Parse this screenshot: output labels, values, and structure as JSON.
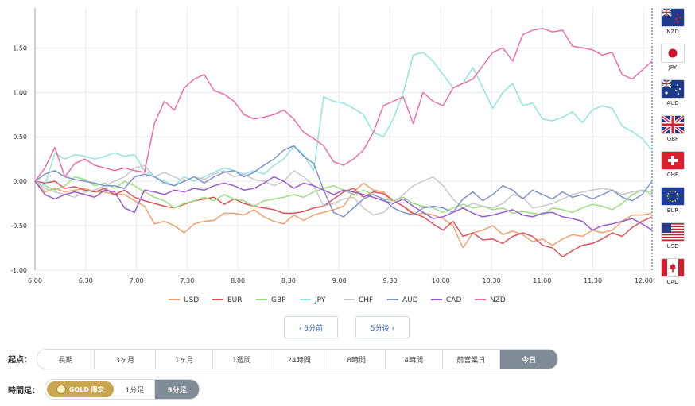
{
  "chart_data": {
    "type": "line",
    "x_ticks": [
      "6:00",
      "6:30",
      "7:00",
      "7:30",
      "8:00",
      "8:30",
      "9:00",
      "9:30",
      "10:00",
      "10:30",
      "11:00",
      "11:30",
      "12:00"
    ],
    "xlim": [
      "6:00",
      "12:05"
    ],
    "y_ticks": [
      "1.50",
      "1.00",
      "0.50",
      "0.00",
      "-0.50",
      "-1.00"
    ],
    "ylim": [
      -1.0,
      1.95
    ],
    "grid": true,
    "legend_position": "bottom",
    "series": [
      {
        "name": "USD",
        "color": "#f0a06a",
        "values": [
          0,
          -0.12,
          -0.08,
          -0.12,
          -0.1,
          -0.08,
          -0.12,
          -0.12,
          -0.15,
          -0.15,
          -0.22,
          -0.28,
          -0.48,
          -0.45,
          -0.5,
          -0.58,
          -0.48,
          -0.45,
          -0.44,
          -0.36,
          -0.36,
          -0.38,
          -0.32,
          -0.4,
          -0.45,
          -0.48,
          -0.38,
          -0.44,
          -0.38,
          -0.35,
          -0.32,
          -0.28,
          -0.12,
          -0.02,
          -0.1,
          -0.12,
          -0.22,
          -0.28,
          -0.38,
          -0.36,
          -0.38,
          -0.42,
          -0.5,
          -0.75,
          -0.58,
          -0.55,
          -0.5,
          -0.6,
          -0.56,
          -0.6,
          -0.68,
          -0.65,
          -0.72,
          -0.65,
          -0.6,
          -0.62,
          -0.55,
          -0.58,
          -0.55,
          -0.45,
          -0.38,
          -0.38,
          -0.36
        ]
      },
      {
        "name": "EUR",
        "color": "#e4505a",
        "values": [
          0,
          -0.02,
          0.0,
          -0.08,
          -0.06,
          -0.1,
          -0.12,
          -0.08,
          -0.15,
          -0.1,
          -0.18,
          -0.22,
          -0.25,
          -0.28,
          -0.3,
          -0.26,
          -0.22,
          -0.2,
          -0.18,
          -0.26,
          -0.2,
          -0.25,
          -0.28,
          -0.3,
          -0.32,
          -0.36,
          -0.36,
          -0.34,
          -0.3,
          -0.28,
          -0.2,
          -0.12,
          -0.08,
          -0.18,
          -0.12,
          -0.14,
          -0.22,
          -0.28,
          -0.36,
          -0.4,
          -0.48,
          -0.55,
          -0.45,
          -0.62,
          -0.58,
          -0.66,
          -0.65,
          -0.7,
          -0.62,
          -0.58,
          -0.62,
          -0.72,
          -0.75,
          -0.85,
          -0.78,
          -0.72,
          -0.7,
          -0.65,
          -0.58,
          -0.62,
          -0.52,
          -0.45,
          -0.4
        ]
      },
      {
        "name": "GBP",
        "color": "#98e07e",
        "values": [
          0,
          -0.05,
          -0.1,
          -0.05,
          0.05,
          0.02,
          -0.05,
          -0.02,
          -0.08,
          0.0,
          -0.05,
          -0.12,
          -0.18,
          -0.22,
          -0.3,
          -0.25,
          -0.22,
          -0.18,
          -0.22,
          -0.15,
          -0.2,
          -0.22,
          -0.28,
          -0.22,
          -0.2,
          -0.18,
          -0.15,
          -0.18,
          -0.12,
          -0.08,
          -0.05,
          -0.1,
          -0.15,
          -0.1,
          -0.15,
          -0.2,
          -0.22,
          -0.18,
          -0.25,
          -0.28,
          -0.3,
          -0.35,
          -0.3,
          -0.26,
          -0.3,
          -0.28,
          -0.32,
          -0.3,
          -0.36,
          -0.34,
          -0.36,
          -0.38,
          -0.3,
          -0.32,
          -0.35,
          -0.3,
          -0.26,
          -0.28,
          -0.32,
          -0.25,
          -0.15,
          -0.1,
          -0.12
        ]
      },
      {
        "name": "JPY",
        "color": "#8fe6dc",
        "values": [
          0,
          -0.05,
          0.32,
          0.25,
          0.3,
          0.28,
          0.25,
          0.28,
          0.32,
          0.28,
          0.3,
          0.12,
          0.05,
          0.0,
          -0.05,
          0.05,
          0.0,
          0.05,
          0.1,
          0.15,
          0.12,
          0.08,
          0.12,
          0.08,
          0.18,
          0.25,
          0.4,
          0.3,
          0.12,
          0.95,
          0.9,
          0.88,
          0.82,
          0.75,
          0.55,
          0.5,
          0.7,
          1.0,
          1.42,
          1.45,
          1.35,
          1.2,
          1.05,
          1.1,
          1.28,
          1.05,
          0.82,
          1.0,
          1.1,
          0.85,
          0.88,
          0.7,
          0.68,
          0.72,
          0.78,
          0.66,
          0.8,
          0.85,
          0.82,
          0.62,
          0.56,
          0.48,
          0.35
        ]
      },
      {
        "name": "CHF",
        "color": "#c9c9c9",
        "values": [
          0,
          -0.08,
          -0.12,
          -0.15,
          -0.18,
          -0.12,
          -0.1,
          -0.05,
          0.0,
          0.05,
          0.15,
          0.18,
          0.05,
          0.1,
          0.05,
          0.0,
          0.05,
          0.02,
          0.08,
          0.12,
          0.05,
          0.08,
          0.02,
          0.0,
          -0.05,
          0.0,
          0.12,
          0.05,
          -0.05,
          -0.28,
          -0.25,
          -0.2,
          -0.18,
          -0.3,
          -0.38,
          -0.35,
          -0.25,
          -0.15,
          -0.05,
          0.0,
          0.05,
          -0.05,
          -0.2,
          -0.3,
          -0.25,
          -0.28,
          -0.3,
          -0.25,
          -0.15,
          -0.18,
          -0.3,
          -0.28,
          -0.25,
          -0.2,
          -0.15,
          -0.12,
          -0.1,
          -0.08,
          -0.1,
          -0.15,
          -0.12,
          -0.1,
          -0.15
        ]
      },
      {
        "name": "AUD",
        "color": "#7e92cc",
        "values": [
          0,
          0.08,
          0.12,
          0.05,
          0.02,
          0.0,
          -0.02,
          -0.05,
          -0.05,
          -0.08,
          0.05,
          0.08,
          0.05,
          -0.02,
          -0.05,
          0.0,
          0.05,
          -0.02,
          0.05,
          0.1,
          0.12,
          0.05,
          0.1,
          0.18,
          0.25,
          0.35,
          0.4,
          0.28,
          0.2,
          -0.1,
          -0.35,
          -0.4,
          -0.3,
          -0.2,
          -0.15,
          -0.2,
          -0.3,
          -0.35,
          -0.38,
          -0.3,
          -0.28,
          -0.3,
          -0.35,
          -0.2,
          -0.12,
          -0.22,
          -0.15,
          -0.05,
          -0.1,
          -0.2,
          -0.1,
          -0.15,
          -0.2,
          -0.12,
          -0.18,
          -0.15,
          -0.2,
          -0.15,
          -0.1,
          -0.18,
          -0.22,
          -0.15,
          0.0
        ]
      },
      {
        "name": "CAD",
        "color": "#9b5ad0",
        "values": [
          0,
          -0.15,
          -0.2,
          -0.15,
          -0.12,
          -0.15,
          -0.18,
          -0.1,
          -0.12,
          -0.3,
          -0.35,
          -0.1,
          -0.12,
          -0.15,
          -0.1,
          -0.12,
          -0.08,
          -0.1,
          -0.05,
          -0.02,
          -0.05,
          -0.1,
          -0.08,
          -0.02,
          0.05,
          0.0,
          -0.08,
          -0.02,
          -0.05,
          -0.1,
          -0.15,
          -0.1,
          -0.12,
          -0.15,
          -0.18,
          -0.22,
          -0.25,
          -0.2,
          -0.28,
          -0.35,
          -0.42,
          -0.4,
          -0.35,
          -0.3,
          -0.36,
          -0.4,
          -0.38,
          -0.35,
          -0.32,
          -0.38,
          -0.4,
          -0.36,
          -0.35,
          -0.4,
          -0.42,
          -0.45,
          -0.55,
          -0.5,
          -0.48,
          -0.45,
          -0.42,
          -0.48,
          -0.55
        ]
      },
      {
        "name": "NZD",
        "color": "#ee6ea8",
        "values": [
          0,
          0.15,
          0.38,
          0.05,
          0.2,
          0.25,
          0.18,
          0.15,
          0.12,
          0.15,
          0.12,
          0.1,
          0.65,
          0.9,
          0.8,
          1.05,
          1.15,
          1.2,
          1.02,
          0.98,
          0.9,
          0.75,
          0.7,
          0.72,
          0.75,
          0.8,
          0.7,
          0.55,
          0.48,
          0.4,
          0.22,
          0.18,
          0.25,
          0.35,
          0.55,
          0.85,
          0.9,
          0.95,
          0.65,
          1.0,
          0.9,
          0.85,
          1.05,
          1.1,
          1.15,
          1.3,
          1.45,
          1.5,
          1.35,
          1.65,
          1.7,
          1.72,
          1.68,
          1.7,
          1.52,
          1.5,
          1.48,
          1.42,
          1.45,
          1.2,
          1.15,
          1.25,
          1.35
        ]
      }
    ]
  },
  "flags": [
    {
      "code": "NZD"
    },
    {
      "code": "JPY"
    },
    {
      "code": "AUD"
    },
    {
      "code": "GBP"
    },
    {
      "code": "CHF"
    },
    {
      "code": "EUR"
    },
    {
      "code": "USD"
    },
    {
      "code": "CAD"
    }
  ],
  "nav": {
    "prev": "‹ 5分前",
    "next": "5分後 ›"
  },
  "start_row": {
    "label": "起点：",
    "options": [
      "長期",
      "3ヶ月",
      "1ヶ月",
      "1週間",
      "24時間",
      "8時間",
      "4時間",
      "前営業日",
      "今日"
    ],
    "selected": "今日"
  },
  "timeframe_row": {
    "label": "時間足：",
    "gold_label": "GOLD 限定",
    "options": [
      "1分足",
      "5分足"
    ],
    "selected": "5分足"
  }
}
